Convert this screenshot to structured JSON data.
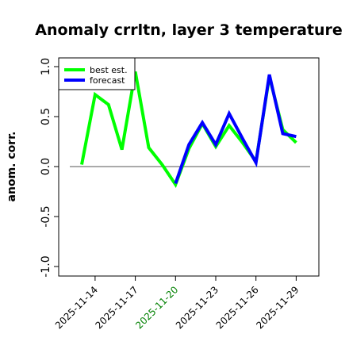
{
  "chart_data": {
    "type": "line",
    "title": "Anomaly crrltn, layer 3 temperature",
    "xlabel": "",
    "ylabel": "anom. corr.",
    "ylim": [
      -1.05,
      1.05
    ],
    "yticks": [
      -1.0,
      -0.5,
      0.0,
      0.5,
      1.0
    ],
    "ytick_labels": [
      "-1.0",
      "-0.5",
      "0.0",
      "0.5",
      "1.0"
    ],
    "x": [
      "2025-11-13",
      "2025-11-14",
      "2025-11-15",
      "2025-11-16",
      "2025-11-17",
      "2025-11-18",
      "2025-11-19",
      "2025-11-20",
      "2025-11-21",
      "2025-11-22",
      "2025-11-23",
      "2025-11-24",
      "2025-11-25",
      "2025-11-26",
      "2025-11-27",
      "2025-11-28",
      "2025-11-29"
    ],
    "xticks": [
      "2025-11-14",
      "2025-11-17",
      "2025-11-20",
      "2025-11-23",
      "2025-11-26",
      "2025-11-29"
    ],
    "xtick_colors": [
      "#000000",
      "#000000",
      "#008000",
      "#000000",
      "#000000",
      "#000000"
    ],
    "reference_line": 0.0,
    "series": [
      {
        "name": "best est.",
        "color": "#00ff00",
        "x": [
          "2025-11-13",
          "2025-11-14",
          "2025-11-15",
          "2025-11-16",
          "2025-11-17",
          "2025-11-18",
          "2025-11-19",
          "2025-11-20",
          "2025-11-21",
          "2025-11-22",
          "2025-11-23",
          "2025-11-24",
          "2025-11-25",
          "2025-11-26",
          "2025-11-27",
          "2025-11-28",
          "2025-11-29"
        ],
        "values": [
          0.02,
          0.72,
          0.62,
          0.17,
          0.95,
          0.19,
          0.02,
          -0.18,
          0.18,
          0.43,
          0.2,
          0.41,
          0.24,
          0.05,
          0.9,
          0.37,
          0.24
        ]
      },
      {
        "name": "forecast",
        "color": "#0000ff",
        "x": [
          "2025-11-20",
          "2025-11-21",
          "2025-11-22",
          "2025-11-23",
          "2025-11-24",
          "2025-11-25",
          "2025-11-26",
          "2025-11-27",
          "2025-11-28",
          "2025-11-29"
        ],
        "values": [
          -0.17,
          0.22,
          0.44,
          0.22,
          0.53,
          0.28,
          0.04,
          0.92,
          0.33,
          0.3
        ]
      }
    ],
    "legend": "top-left",
    "grid": false
  }
}
